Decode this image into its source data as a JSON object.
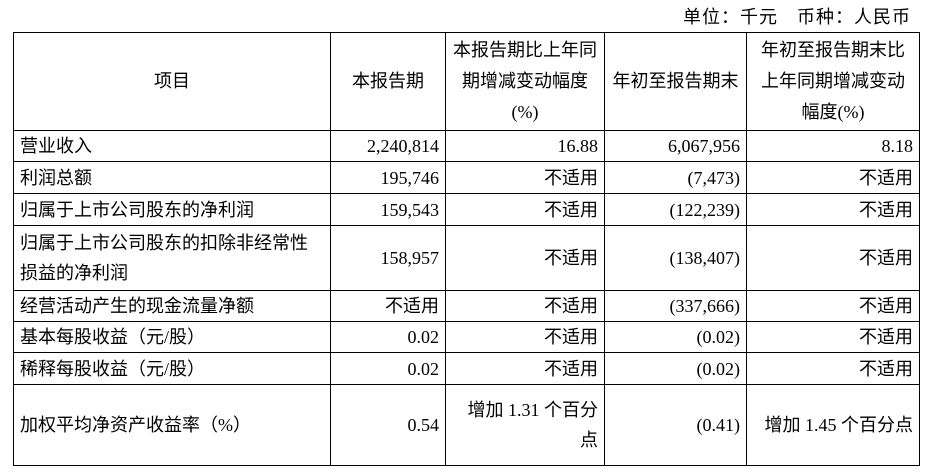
{
  "unit": "单位：千元　币种：人民币",
  "table": {
    "header": [
      "项目",
      "本报告期",
      "本报告期比上年同期增减变动幅度(%)",
      "年初至报告期末",
      "年初至报告期末比上年同期增减变动幅度(%)"
    ],
    "rows": [
      [
        "营业收入",
        "2,240,814",
        "16.88",
        "6,067,956",
        "8.18"
      ],
      [
        "利润总额",
        "195,746",
        "不适用",
        "(7,473)",
        "不适用"
      ],
      [
        "归属于上市公司股东的净利润",
        "159,543",
        "不适用",
        "(122,239)",
        "不适用"
      ],
      [
        "归属于上市公司股东的扣除非经常性损益的净利润",
        "158,957",
        "不适用",
        "(138,407)",
        "不适用"
      ],
      [
        "经营活动产生的现金流量净额",
        "不适用",
        "不适用",
        "(337,666)",
        "不适用"
      ],
      [
        "基本每股收益（元/股）",
        "0.02",
        "不适用",
        "(0.02)",
        "不适用"
      ],
      [
        "稀释每股收益（元/股）",
        "0.02",
        "不适用",
        "(0.02)",
        "不适用"
      ],
      [
        "加权平均净资产收益率（%）",
        "0.54",
        "增加 1.31 个百分点",
        "(0.41)",
        "增加 1.45 个百分点"
      ]
    ]
  }
}
